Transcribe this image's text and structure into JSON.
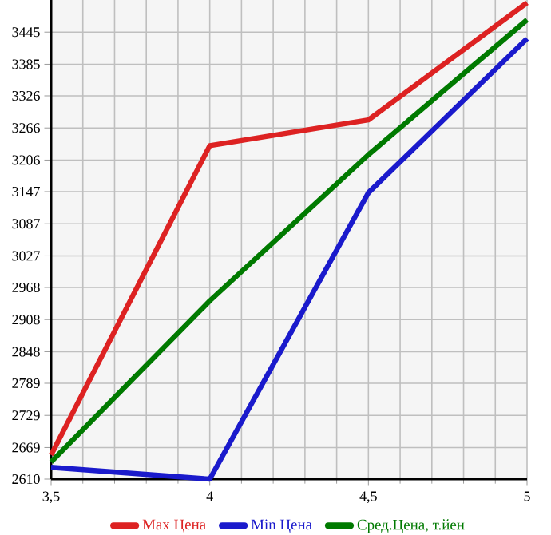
{
  "chart_data": {
    "type": "line",
    "x": [
      3.5,
      4,
      4.5,
      5
    ],
    "series": [
      {
        "name": "Max Цена",
        "color": "#dd2222",
        "values": [
          2655,
          3233,
          3281,
          3500
        ]
      },
      {
        "name": "Min Цена",
        "color": "#1a1acc",
        "values": [
          2632,
          2610,
          3145,
          3433
        ]
      },
      {
        "name": "Сред.Цена, т.йен",
        "color": "#007a00",
        "values": [
          2642,
          2943,
          3216,
          3468
        ]
      }
    ],
    "xlim": [
      3.5,
      5
    ],
    "ylim": [
      2610,
      3505
    ],
    "xticks": [
      {
        "value": 3.5,
        "label": "3,5"
      },
      4,
      {
        "value": 4.5,
        "label": "4,5"
      },
      5
    ],
    "yticks": [
      2610,
      2669,
      2729,
      2789,
      2848,
      2908,
      2968,
      3027,
      3087,
      3147,
      3206,
      3266,
      3326,
      3385,
      3445
    ],
    "grid": true,
    "legend": "bottom",
    "marker": "none",
    "line_style": "solid"
  }
}
